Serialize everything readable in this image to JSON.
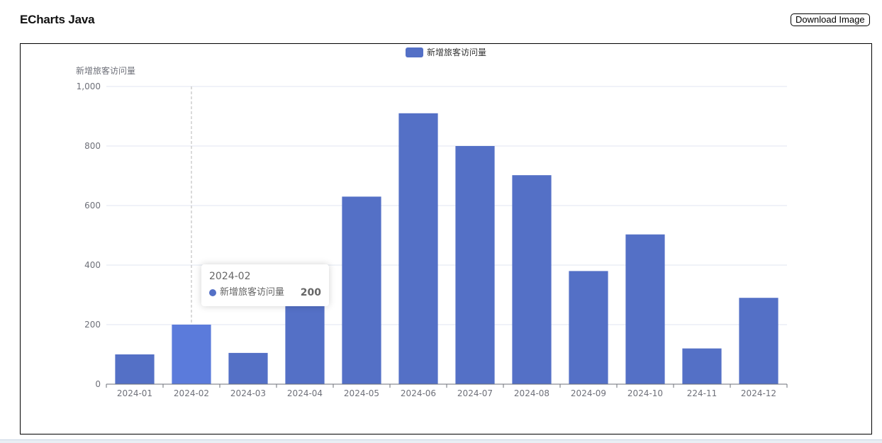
{
  "header": {
    "title": "ECharts Java",
    "download_label": "Download Image"
  },
  "chart_data": {
    "type": "bar",
    "title": "",
    "ylabel": "新增旅客访问量",
    "legend": {
      "position": "top-center",
      "entries": [
        "新增旅客访问量"
      ]
    },
    "grid": true,
    "ylim": [
      0,
      1000
    ],
    "yticks": [
      "0",
      "200",
      "400",
      "600",
      "800",
      "1,000"
    ],
    "categories": [
      "2024-01",
      "2024-02",
      "2024-03",
      "2024-04",
      "2024-05",
      "2024-06",
      "2024-07",
      "2024-08",
      "2024-09",
      "2024-10",
      "224-11",
      "2024-12"
    ],
    "series": [
      {
        "name": "新增旅客访问量",
        "color": "#5470c6",
        "values": [
          100,
          200,
          105,
          265,
          630,
          910,
          800,
          702,
          380,
          503,
          120,
          290
        ]
      }
    ],
    "highlight_color": "#5b7bdb"
  },
  "tooltip": {
    "category": "2024-02",
    "series_name": "新增旅客访问量",
    "value": "200"
  }
}
